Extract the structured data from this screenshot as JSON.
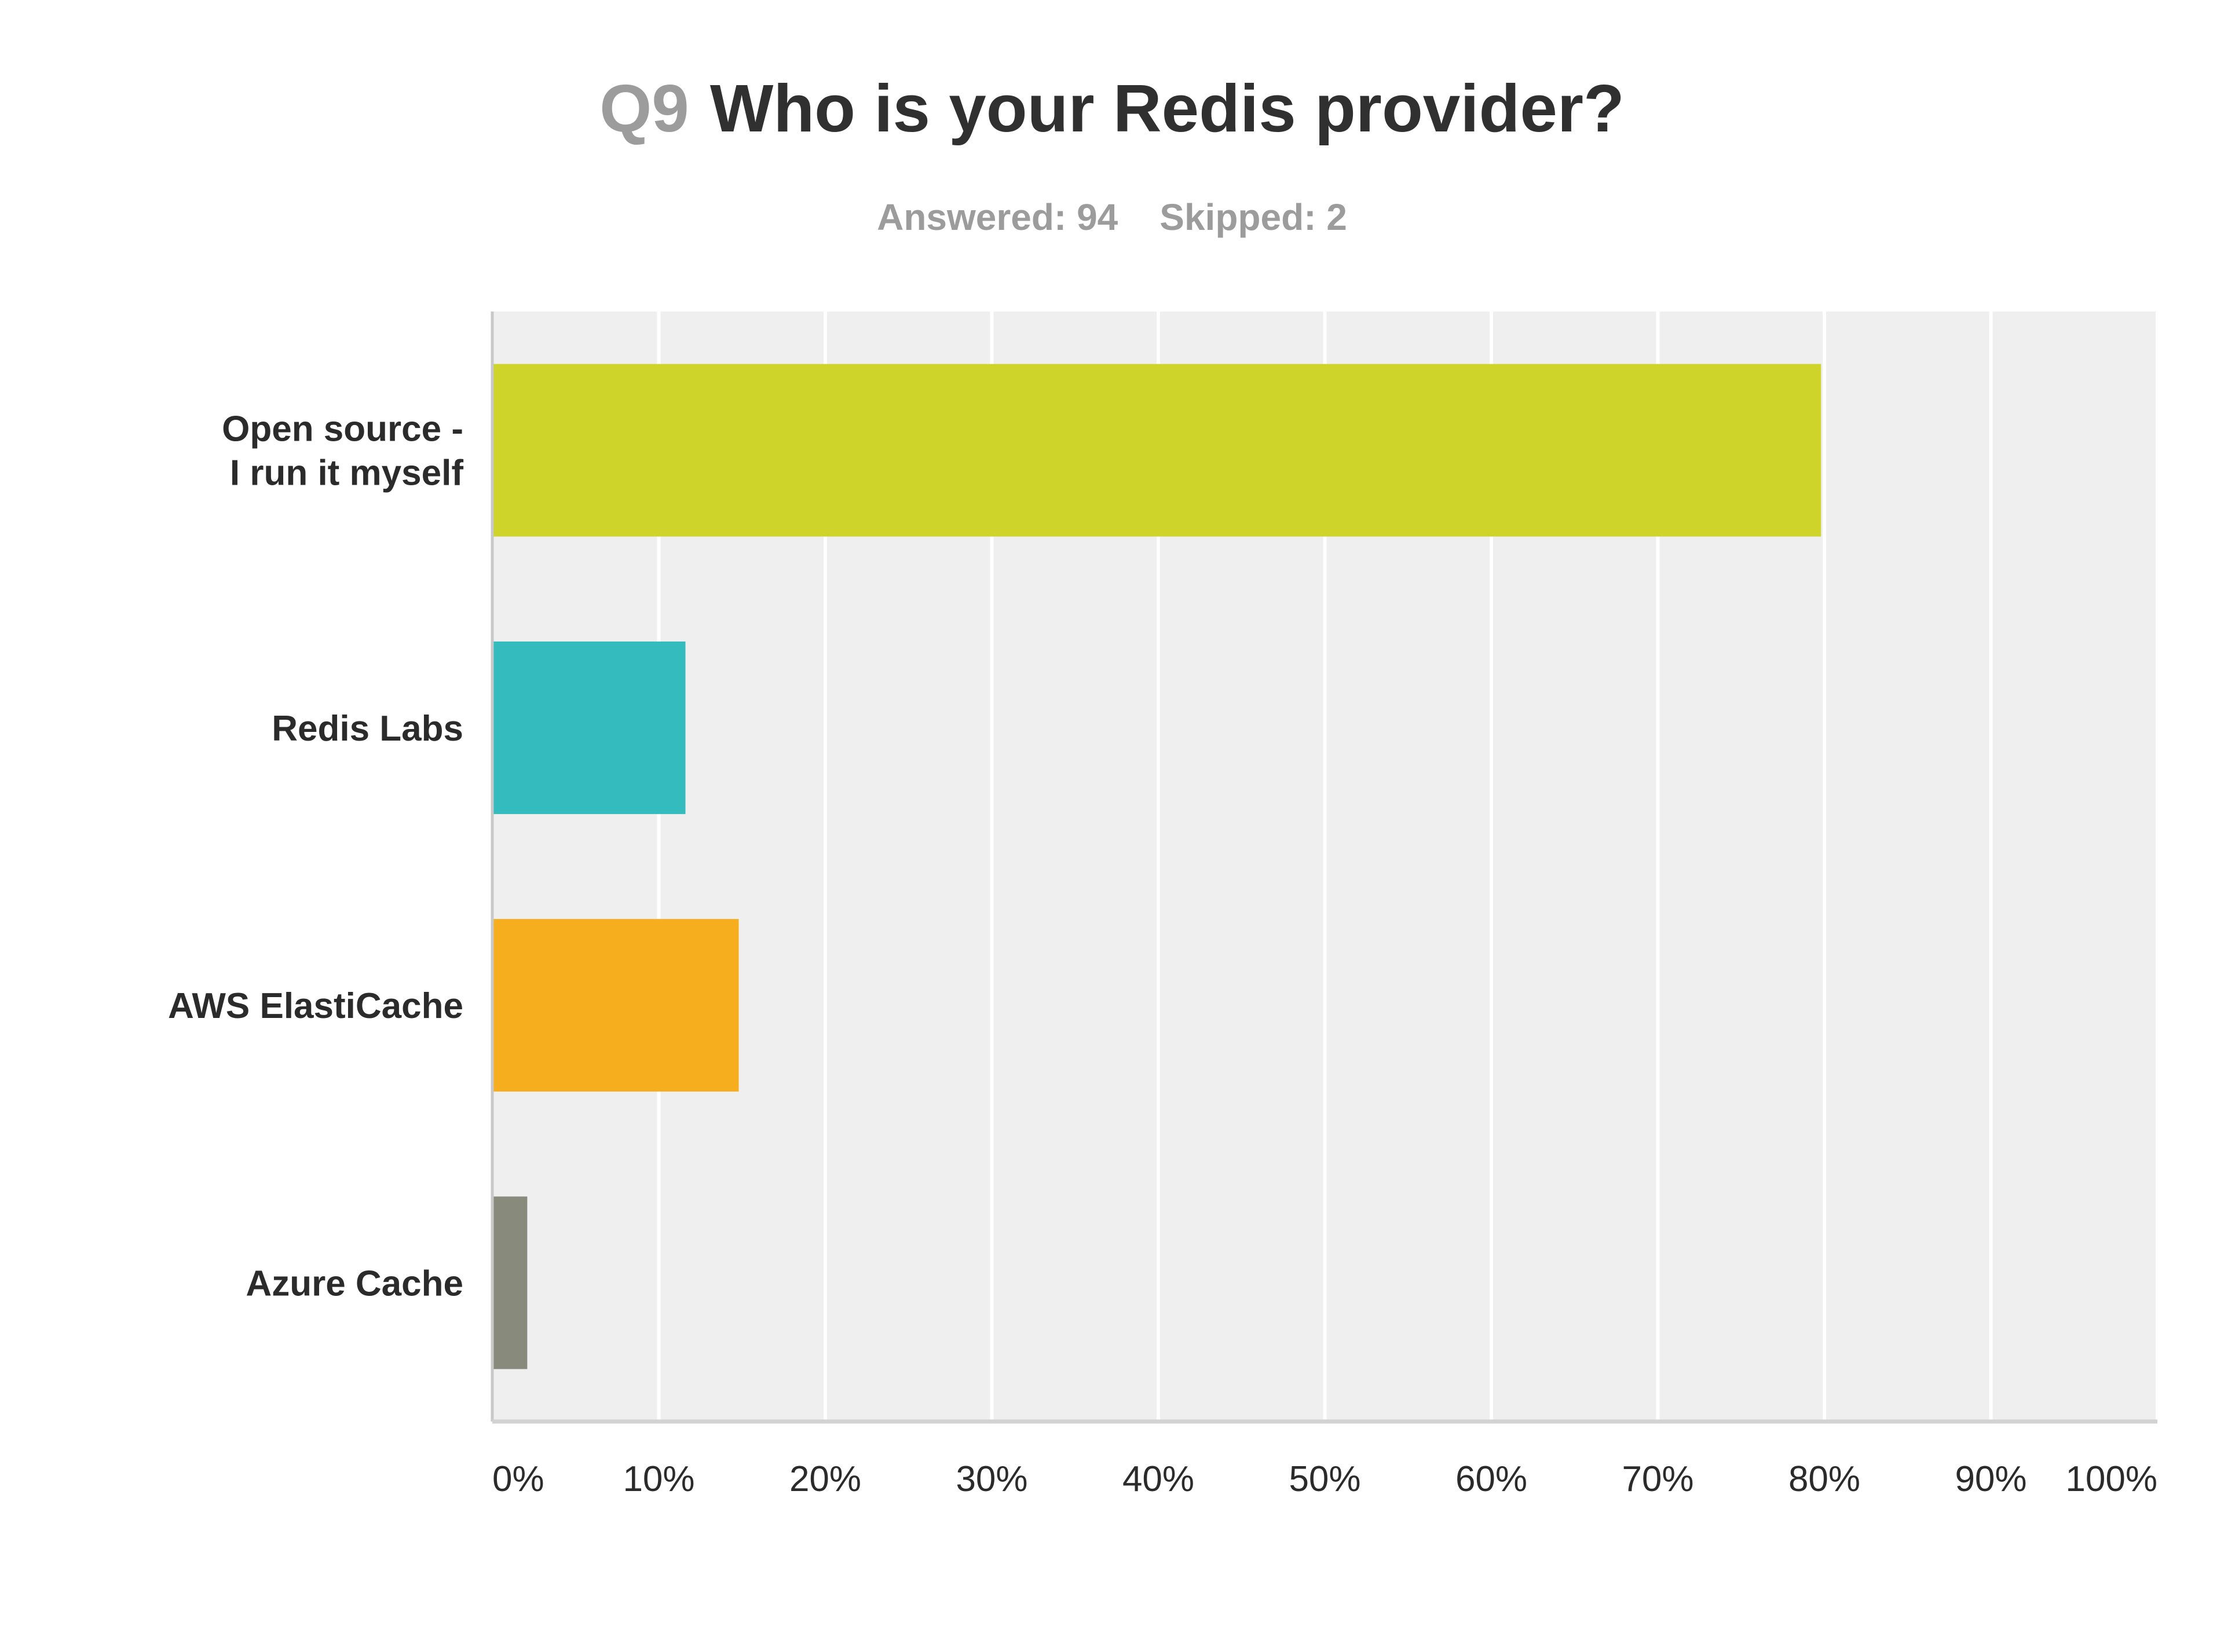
{
  "header": {
    "question_number": "Q9",
    "title": "Who is your Redis provider?",
    "answered": "Answered: 94",
    "skipped": "Skipped: 2"
  },
  "chart_data": {
    "type": "bar",
    "orientation": "horizontal",
    "title": "Who is your Redis provider?",
    "categories": [
      [
        "Open source -",
        "I run it myself"
      ],
      [
        "Redis Labs"
      ],
      [
        "AWS ElastiCache"
      ],
      [
        "Azure Cache"
      ]
    ],
    "values": [
      79.8,
      11.6,
      14.8,
      2.1
    ],
    "colors": [
      "#cfd42a",
      "#33bbbd",
      "#f6ae1e",
      "#888a7c"
    ],
    "xlim": [
      0,
      100
    ],
    "xticks": [
      "0%",
      "10%",
      "20%",
      "30%",
      "40%",
      "50%",
      "60%",
      "70%",
      "80%",
      "90%",
      "100%"
    ],
    "grid": true,
    "plot_background": "#efefef",
    "gridline_color": "#ffffff"
  }
}
